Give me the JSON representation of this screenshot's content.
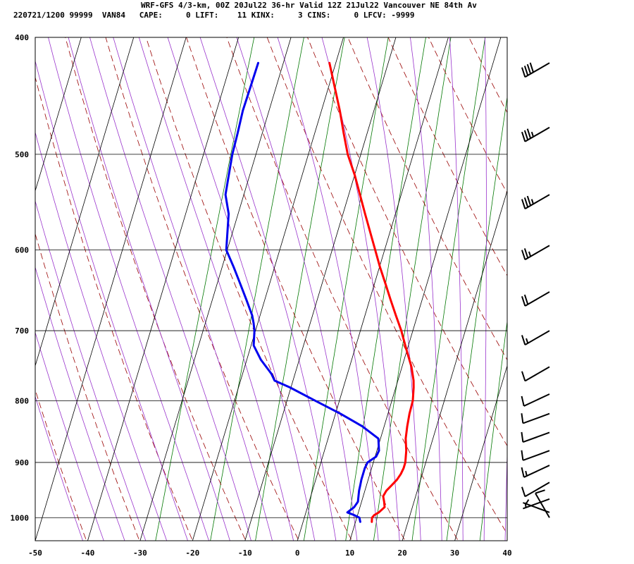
{
  "header": {
    "title": "WRF-GFS 4/3-km, 00Z 20Jul22 36-hr Valid 12Z 21Jul22 Vancouver NE 84th Av",
    "info": "220721/1200 99999  VAN84   CAPE:     0 LIFT:    11 KINX:     3 CINS:     0 LFCV: -9999"
  },
  "chart_data": {
    "type": "line",
    "subtype": "skew-t log-p sounding",
    "title": "WRF-GFS 4/3-km, 00Z 20Jul22 36-hr Valid 12Z 21Jul22 Vancouver NE 84th Av",
    "xlabel": "",
    "ylabel": "",
    "x_ticks": [
      -50,
      -40,
      -30,
      -20,
      -10,
      0,
      10,
      20,
      30,
      40
    ],
    "x_tick_labels": [
      "-50",
      "-40",
      "-30",
      "-20",
      "-10",
      "0",
      "10",
      "20",
      "30",
      "40"
    ],
    "y_ticks": [
      400,
      500,
      600,
      700,
      800,
      900,
      1000
    ],
    "y_tick_labels": [
      "400",
      "500",
      "600",
      "700",
      "800",
      "900",
      "1000"
    ],
    "xlim": [
      -50,
      40
    ],
    "ylim": [
      1045,
      400
    ],
    "y_scale": "log",
    "grid": true,
    "colors": {
      "temperature": "#ff0000",
      "dewpoint": "#0000ee",
      "grid": "#000000",
      "dry_adiabat": "#990000",
      "moist_adiabat": "#9933cc",
      "mixing_ratio": "#007700"
    },
    "series": [
      {
        "pressure": [
          1008,
          1000,
          995,
          990,
          980,
          970,
          960,
          950,
          940,
          930,
          920,
          910,
          900,
          880,
          860,
          840,
          820,
          800,
          780,
          770,
          750,
          730,
          710,
          700,
          680,
          660,
          640,
          620,
          600,
          560,
          520,
          500,
          480,
          460,
          440,
          420
        ],
        "values": [
          13.1,
          12.9,
          13.2,
          13.9,
          14.7,
          14.3,
          13.8,
          14.1,
          14.8,
          15.5,
          15.9,
          16.1,
          16.1,
          15.6,
          14.8,
          14.4,
          14.1,
          14.0,
          13.4,
          13.0,
          11.8,
          10.2,
          8.6,
          7.8,
          5.9,
          4.0,
          2.1,
          0.1,
          -1.8,
          -5.8,
          -10.0,
          -12.5,
          -14.5,
          -16.5,
          -18.8,
          -21.2
        ]
      },
      {
        "pressure": [
          1008,
          1000,
          995,
          990,
          980,
          970,
          960,
          950,
          940,
          930,
          920,
          910,
          900,
          890,
          880,
          860,
          840,
          820,
          800,
          780,
          770,
          760,
          740,
          720,
          700,
          690,
          680,
          660,
          640,
          620,
          600,
          560,
          540,
          520,
          500,
          480,
          460,
          440,
          420
        ],
        "values": [
          10.9,
          10.5,
          9.3,
          7.9,
          8.9,
          9.3,
          9.1,
          8.9,
          8.8,
          8.7,
          8.7,
          8.7,
          8.9,
          10.2,
          10.4,
          9.6,
          5.8,
          0.9,
          -4.6,
          -10.2,
          -13.5,
          -14.5,
          -17.3,
          -19.5,
          -20.2,
          -20.8,
          -21.5,
          -23.5,
          -25.6,
          -27.8,
          -30.2,
          -31.8,
          -33.5,
          -34.0,
          -34.5,
          -34.7,
          -35.0,
          -34.9,
          -34.8
        ]
      }
    ],
    "winds": [
      {
        "p": 420,
        "dir": 240,
        "spd": 40
      },
      {
        "p": 475,
        "dir": 240,
        "spd": 35
      },
      {
        "p": 540,
        "dir": 240,
        "spd": 35
      },
      {
        "p": 595,
        "dir": 240,
        "spd": 25
      },
      {
        "p": 650,
        "dir": 240,
        "spd": 20
      },
      {
        "p": 700,
        "dir": 240,
        "spd": 15
      },
      {
        "p": 750,
        "dir": 240,
        "spd": 10
      },
      {
        "p": 790,
        "dir": 245,
        "spd": 10
      },
      {
        "p": 820,
        "dir": 250,
        "spd": 10
      },
      {
        "p": 850,
        "dir": 250,
        "spd": 10
      },
      {
        "p": 880,
        "dir": 250,
        "spd": 10
      },
      {
        "p": 905,
        "dir": 245,
        "spd": 15
      },
      {
        "p": 935,
        "dir": 240,
        "spd": 10
      },
      {
        "p": 965,
        "dir": 250,
        "spd": 5
      },
      {
        "p": 990,
        "dir": 290,
        "spd": 5
      },
      {
        "p": 1000,
        "dir": 330,
        "spd": 10
      }
    ]
  }
}
